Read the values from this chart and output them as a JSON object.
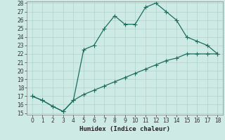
{
  "xlabel": "Humidex (Indice chaleur)",
  "background_color": "#ceeae4",
  "line_color": "#1a6e60",
  "grid_color": "#aed4cc",
  "series1_x": [
    0,
    1,
    2,
    3,
    4,
    5,
    6,
    7,
    8,
    9,
    10,
    11,
    12,
    13,
    14,
    15,
    16,
    17,
    18
  ],
  "series1_y": [
    17,
    16.5,
    15.8,
    15.2,
    16.5,
    22.5,
    23.0,
    25.0,
    26.5,
    25.5,
    25.5,
    27.5,
    28.0,
    27.0,
    26.0,
    24.0,
    23.5,
    23.0,
    22.0
  ],
  "series2_x": [
    0,
    1,
    2,
    3,
    4,
    5,
    6,
    7,
    8,
    9,
    10,
    11,
    12,
    13,
    14,
    15,
    16,
    17,
    18
  ],
  "series2_y": [
    17,
    16.5,
    15.8,
    15.2,
    16.5,
    17.2,
    17.7,
    18.2,
    18.7,
    19.2,
    19.7,
    20.2,
    20.7,
    21.2,
    21.5,
    22.0,
    22.0,
    22.0,
    22.0
  ],
  "ylim": [
    15,
    28
  ],
  "xlim": [
    -0.5,
    18.5
  ],
  "yticks": [
    15,
    16,
    17,
    18,
    19,
    20,
    21,
    22,
    23,
    24,
    25,
    26,
    27,
    28
  ],
  "xticks": [
    0,
    1,
    2,
    3,
    4,
    5,
    6,
    7,
    8,
    9,
    10,
    11,
    12,
    13,
    14,
    15,
    16,
    17,
    18
  ],
  "markersize": 2.5,
  "linewidth": 0.9,
  "tick_labelsize": 5.5,
  "xlabel_fontsize": 6.5
}
